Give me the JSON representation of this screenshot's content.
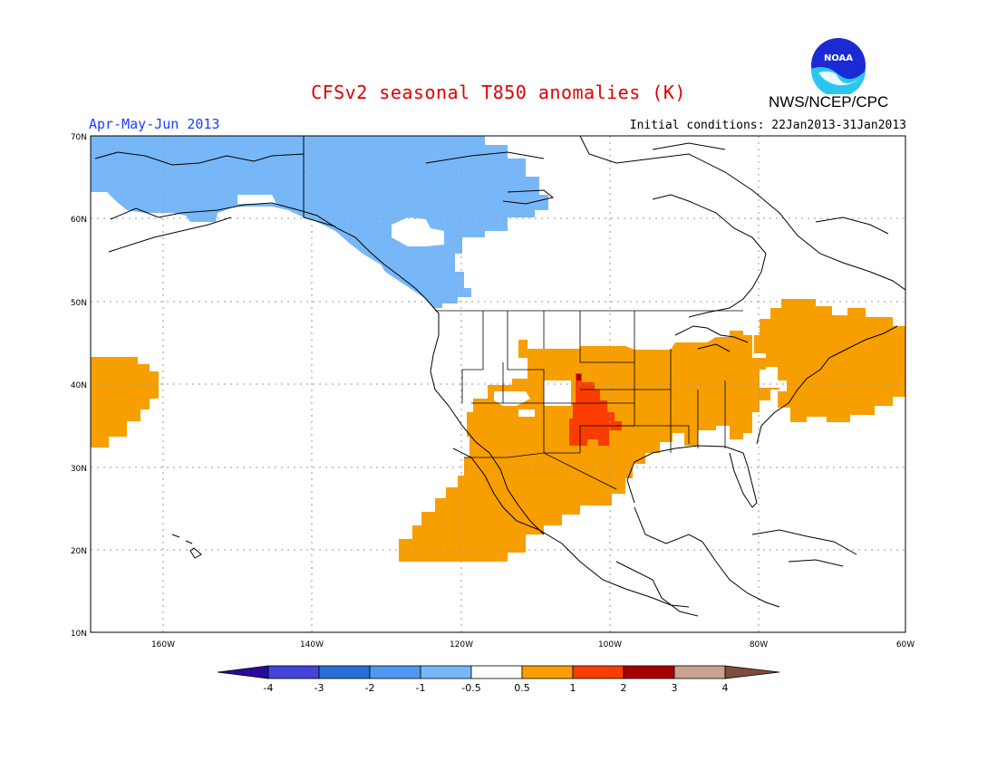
{
  "header": {
    "title": "CFSv2 seasonal T850 anomalies (K)",
    "organization": "NWS/NCEP/CPC",
    "logo_text": "NOAA",
    "season": "Apr-May-Jun 2013",
    "initial_conditions": "Initial conditions: 22Jan2013-31Jan2013"
  },
  "map": {
    "region": "North America / North Pacific",
    "lon_range": [
      -172,
      -60
    ],
    "lat_range": [
      10,
      70
    ],
    "lat_ticks": [
      "10N",
      "20N",
      "30N",
      "40N",
      "50N",
      "60N",
      "70N"
    ],
    "lon_ticks": [
      "160W",
      "140W",
      "120W",
      "100W",
      "80W",
      "60W"
    ],
    "gridlines": true,
    "anomaly_regions": [
      {
        "name": "Alaska/NW Canada",
        "class": "-1 to -0.5",
        "color": "#77b7f7"
      },
      {
        "name": "Central/Eastern US and SW",
        "class": "0.5 to 1",
        "color": "#f79e00"
      },
      {
        "name": "Central Plains core",
        "class": "1 to 2",
        "color": "#fa3c00"
      },
      {
        "name": "Central Pacific",
        "class": "0.5 to 1",
        "color": "#f79e00"
      },
      {
        "name": "Northeast US/Maritimes",
        "class": "0.5 to 1",
        "color": "#f79e00"
      }
    ]
  },
  "colorbar": {
    "labels": [
      "-4",
      "-3",
      "-2",
      "-1",
      "-0.5",
      "0.5",
      "1",
      "2",
      "3",
      "4"
    ],
    "colors": [
      "#2a0a9a",
      "#4444d8",
      "#2a6ed8",
      "#4f98f0",
      "#77b7f7",
      "#ffffff",
      "#f79e00",
      "#fa3c00",
      "#a60000",
      "#c9a290",
      "#7e4d3e"
    ]
  }
}
